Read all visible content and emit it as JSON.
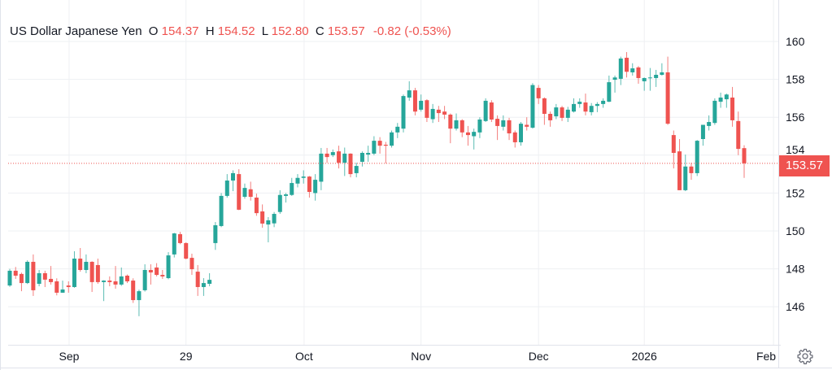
{
  "header": {
    "symbol": "US Dollar Japanese Yen",
    "open_label": "O",
    "open": "154.37",
    "high_label": "H",
    "high": "154.52",
    "low_label": "L",
    "low": "152.80",
    "close_label": "C",
    "close": "153.57",
    "change": "-0.82 (-0.53%)"
  },
  "last_price_label": "153.57",
  "settings_icon": "gear-icon",
  "colors": {
    "up": "#26a69a",
    "down": "#ef5350",
    "grid": "#eef0f3",
    "text": "#131722"
  },
  "chart_data": {
    "type": "candlestick",
    "title": "US Dollar Japanese Yen",
    "ylim": [
      144.3,
      161.9
    ],
    "y_ticks": [
      146,
      148,
      150,
      152,
      154,
      156,
      158,
      160
    ],
    "x_ticks": [
      {
        "label": "Sep",
        "bar": 10.1
      },
      {
        "label": "29",
        "bar": 30.0
      },
      {
        "label": "Oct",
        "bar": 50.1
      },
      {
        "label": "Nov",
        "bar": 70.0
      },
      {
        "label": "Dec",
        "bar": 90.0
      },
      {
        "label": "2026",
        "bar": 108.0
      },
      {
        "label": "Feb",
        "bar": 130.0
      }
    ],
    "last_price": 153.57,
    "grid": true,
    "ohlc": [
      [
        147.12,
        148.0,
        147.05,
        147.9
      ],
      [
        147.9,
        148.1,
        147.47,
        147.64
      ],
      [
        147.73,
        147.8,
        146.82,
        147.25
      ],
      [
        147.25,
        148.45,
        147.2,
        148.37
      ],
      [
        148.37,
        148.76,
        146.57,
        146.87
      ],
      [
        147.21,
        147.94,
        147.08,
        147.77
      ],
      [
        147.77,
        147.9,
        147.04,
        147.43
      ],
      [
        147.47,
        148.15,
        147.17,
        147.3
      ],
      [
        147.34,
        147.5,
        146.6,
        146.74
      ],
      [
        146.74,
        147.38,
        146.74,
        146.91
      ],
      [
        147.12,
        147.34,
        146.74,
        147.04
      ],
      [
        147.04,
        148.93,
        147.0,
        148.54
      ],
      [
        148.54,
        149.1,
        147.85,
        147.94
      ],
      [
        147.94,
        148.76,
        147.77,
        148.37
      ],
      [
        148.37,
        148.4,
        146.78,
        147.3
      ],
      [
        148.2,
        148.54,
        147.21,
        147.3
      ],
      [
        147.3,
        147.4,
        146.3,
        147.38
      ],
      [
        147.38,
        147.6,
        147.08,
        147.3
      ],
      [
        147.34,
        148.15,
        146.95,
        147.17
      ],
      [
        147.17,
        148.07,
        147.1,
        147.6
      ],
      [
        147.64,
        147.7,
        147.25,
        147.34
      ],
      [
        147.38,
        147.5,
        146.2,
        146.35
      ],
      [
        146.35,
        146.9,
        145.5,
        146.82
      ],
      [
        146.87,
        148.24,
        146.8,
        147.94
      ],
      [
        147.94,
        148.24,
        147.17,
        147.81
      ],
      [
        148.07,
        148.3,
        147.6,
        147.68
      ],
      [
        147.68,
        147.94,
        147.47,
        147.6
      ],
      [
        147.51,
        148.88,
        147.45,
        148.71
      ],
      [
        148.76,
        149.9,
        148.6,
        149.87
      ],
      [
        149.83,
        149.95,
        149.3,
        149.36
      ],
      [
        149.36,
        149.4,
        148.5,
        148.54
      ],
      [
        148.58,
        148.8,
        147.68,
        147.98
      ],
      [
        147.85,
        148.2,
        146.57,
        147.04
      ],
      [
        147.04,
        147.51,
        146.57,
        147.25
      ],
      [
        147.21,
        147.77,
        147.08,
        147.42
      ],
      [
        149.36,
        150.47,
        149.0,
        150.3
      ],
      [
        150.26,
        152.0,
        150.2,
        151.85
      ],
      [
        151.85,
        153.0,
        151.76,
        152.66
      ],
      [
        152.66,
        153.2,
        152.1,
        153.05
      ],
      [
        153.0,
        153.26,
        151.1,
        151.12
      ],
      [
        151.8,
        152.5,
        151.7,
        152.27
      ],
      [
        152.2,
        152.6,
        151.6,
        151.8
      ],
      [
        151.76,
        151.97,
        150.8,
        150.94
      ],
      [
        151.03,
        151.4,
        150.17,
        150.39
      ],
      [
        150.34,
        150.73,
        149.4,
        150.56
      ],
      [
        150.4,
        151.0,
        150.2,
        150.9
      ],
      [
        151.0,
        152.15,
        150.9,
        151.9
      ],
      [
        151.85,
        152.0,
        151.5,
        151.93
      ],
      [
        151.9,
        152.8,
        151.85,
        152.53
      ],
      [
        152.5,
        153.0,
        152.3,
        152.8
      ],
      [
        152.8,
        153.2,
        152.5,
        152.87
      ],
      [
        152.87,
        152.9,
        151.76,
        152.06
      ],
      [
        152.0,
        153.0,
        151.6,
        152.7
      ],
      [
        152.6,
        154.38,
        152.15,
        154.08
      ],
      [
        154.08,
        154.38,
        153.6,
        153.9
      ],
      [
        154.0,
        154.3,
        153.9,
        154.16
      ],
      [
        154.2,
        154.5,
        153.3,
        153.6
      ],
      [
        153.6,
        154.4,
        152.9,
        154.08
      ],
      [
        154.08,
        154.1,
        152.83,
        153.0
      ],
      [
        153.05,
        153.6,
        152.83,
        153.43
      ],
      [
        153.65,
        154.2,
        153.4,
        154.12
      ],
      [
        154.03,
        154.5,
        153.65,
        154.12
      ],
      [
        154.08,
        155.0,
        154.0,
        154.76
      ],
      [
        154.76,
        154.95,
        154.08,
        154.5
      ],
      [
        154.55,
        154.7,
        153.56,
        154.5
      ],
      [
        154.5,
        155.3,
        154.4,
        155.2
      ],
      [
        155.2,
        155.7,
        154.9,
        155.5
      ],
      [
        155.4,
        157.2,
        155.2,
        157.12
      ],
      [
        157.04,
        157.9,
        156.87,
        157.42
      ],
      [
        157.42,
        157.55,
        156.1,
        156.3
      ],
      [
        156.4,
        157.2,
        156.3,
        156.87
      ],
      [
        156.9,
        156.95,
        155.75,
        155.97
      ],
      [
        155.9,
        156.7,
        155.7,
        156.44
      ],
      [
        156.4,
        156.6,
        155.75,
        156.22
      ],
      [
        156.3,
        156.6,
        155.9,
        156.14
      ],
      [
        156.14,
        156.2,
        154.63,
        155.4
      ],
      [
        155.4,
        156.2,
        155.3,
        155.84
      ],
      [
        155.84,
        155.9,
        154.95,
        155.2
      ],
      [
        155.2,
        155.54,
        154.5,
        155.06
      ],
      [
        155.0,
        155.4,
        154.3,
        155.23
      ],
      [
        155.2,
        156.0,
        154.9,
        155.88
      ],
      [
        155.8,
        157.0,
        155.75,
        156.87
      ],
      [
        156.78,
        156.9,
        155.75,
        155.88
      ],
      [
        155.92,
        156.1,
        154.8,
        155.54
      ],
      [
        155.5,
        156.1,
        155.3,
        155.84
      ],
      [
        155.84,
        155.97,
        154.8,
        155.15
      ],
      [
        155.2,
        155.3,
        154.4,
        154.68
      ],
      [
        154.68,
        155.75,
        154.5,
        155.66
      ],
      [
        155.6,
        156.0,
        155.3,
        155.5
      ],
      [
        155.45,
        157.8,
        155.4,
        157.7
      ],
      [
        157.55,
        157.7,
        156.7,
        157.0
      ],
      [
        157.0,
        157.05,
        155.6,
        156.18
      ],
      [
        156.18,
        156.3,
        155.5,
        155.84
      ],
      [
        156.05,
        156.7,
        155.9,
        156.52
      ],
      [
        156.52,
        156.6,
        155.8,
        155.97
      ],
      [
        155.97,
        156.55,
        155.75,
        156.4
      ],
      [
        156.3,
        157.0,
        156.25,
        156.7
      ],
      [
        156.7,
        157.0,
        156.5,
        156.82
      ],
      [
        156.78,
        157.25,
        156.1,
        156.3
      ],
      [
        156.27,
        156.75,
        156.1,
        156.6
      ],
      [
        156.6,
        156.8,
        156.27,
        156.7
      ],
      [
        156.7,
        157.0,
        156.5,
        156.87
      ],
      [
        156.82,
        158.2,
        156.8,
        157.85
      ],
      [
        157.98,
        158.2,
        157.3,
        158.1
      ],
      [
        158.03,
        159.2,
        157.7,
        159.1
      ],
      [
        159.14,
        159.44,
        158.1,
        158.4
      ],
      [
        158.37,
        158.85,
        158.2,
        158.58
      ],
      [
        158.63,
        158.7,
        157.77,
        158.07
      ],
      [
        157.9,
        158.1,
        157.4,
        158.07
      ],
      [
        158.07,
        158.6,
        157.4,
        158.1
      ],
      [
        158.07,
        158.5,
        157.6,
        158.24
      ],
      [
        158.24,
        158.85,
        158.2,
        158.37
      ],
      [
        158.37,
        159.2,
        155.6,
        155.66
      ],
      [
        155.06,
        155.3,
        153.3,
        154.12
      ],
      [
        154.2,
        154.85,
        152.15,
        152.15
      ],
      [
        152.15,
        154.03,
        152.1,
        153.4
      ],
      [
        153.4,
        153.6,
        152.7,
        153.05
      ],
      [
        153.05,
        154.8,
        152.9,
        154.76
      ],
      [
        154.85,
        155.6,
        154.5,
        155.6
      ],
      [
        155.54,
        156.1,
        155.3,
        155.75
      ],
      [
        155.7,
        157.0,
        155.6,
        156.87
      ],
      [
        156.82,
        157.3,
        156.5,
        157.04
      ],
      [
        156.95,
        157.25,
        156.5,
        157.2
      ],
      [
        157.04,
        157.6,
        155.5,
        155.84
      ],
      [
        155.8,
        156.3,
        154.0,
        154.33
      ],
      [
        154.37,
        154.52,
        152.8,
        153.57
      ]
    ]
  }
}
